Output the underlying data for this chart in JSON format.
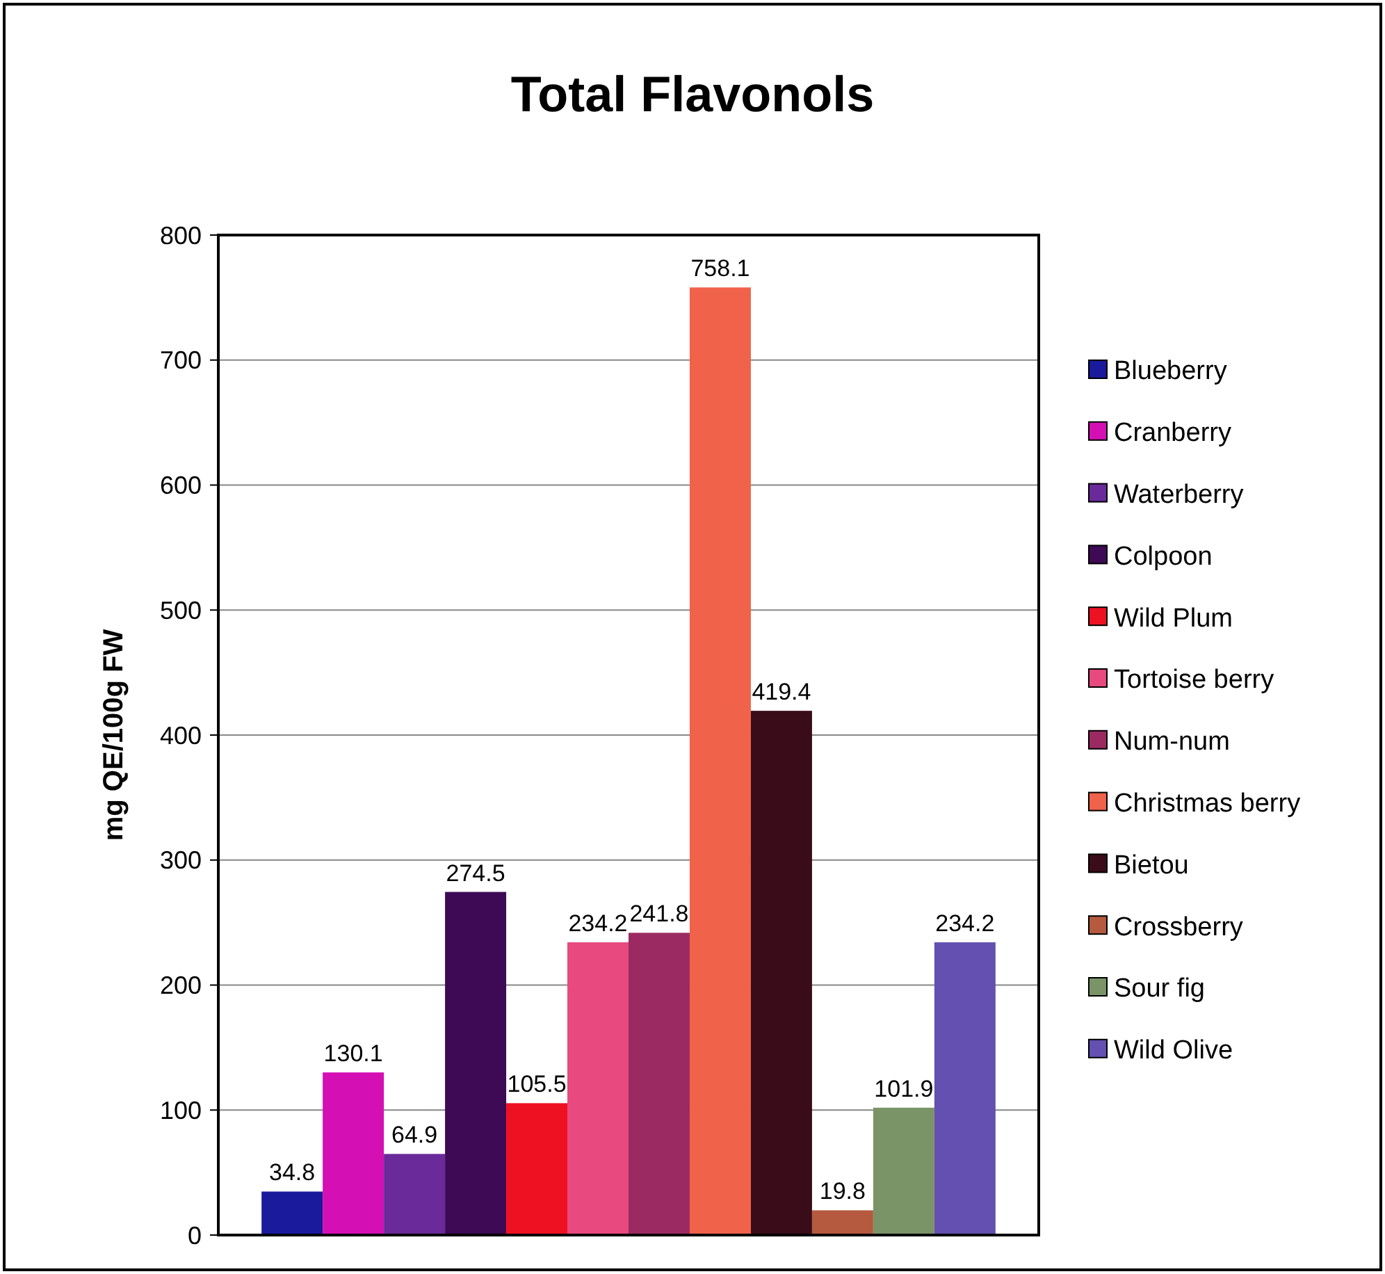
{
  "chart_data": {
    "type": "bar",
    "title": "Total Flavonols",
    "ylabel": "mg QE/100g FW",
    "categories": [
      null
    ],
    "series": [
      {
        "name": "Blueberry",
        "color": "#1a1a9c",
        "values": [
          34.8
        ]
      },
      {
        "name": "Cranberry",
        "color": "#d40fb4",
        "values": [
          130.1
        ]
      },
      {
        "name": "Waterberry",
        "color": "#6a2a9a",
        "values": [
          64.9
        ]
      },
      {
        "name": "Colpoon",
        "color": "#3e0a55",
        "values": [
          274.5
        ]
      },
      {
        "name": "Wild Plum",
        "color": "#ee1122",
        "values": [
          105.5
        ]
      },
      {
        "name": "Tortoise berry",
        "color": "#e8497e",
        "values": [
          234.2
        ]
      },
      {
        "name": "Num-num",
        "color": "#9b2a62",
        "values": [
          241.8
        ]
      },
      {
        "name": "Christmas berry",
        "color": "#f0624a",
        "values": [
          758.1
        ]
      },
      {
        "name": "Bietou",
        "color": "#3a0c1a",
        "values": [
          419.4
        ]
      },
      {
        "name": "Crossberry",
        "color": "#b55a3e",
        "values": [
          19.8
        ]
      },
      {
        "name": "Sour fig",
        "color": "#7a9468",
        "values": [
          101.9
        ]
      },
      {
        "name": "Wild Olive",
        "color": "#6450b0",
        "values": [
          234.2
        ]
      }
    ],
    "ylim": [
      0,
      800
    ],
    "yticks": [
      0,
      100,
      200,
      300,
      400,
      500,
      600,
      700,
      800
    ],
    "grid": "y",
    "legend": "right",
    "data_labels": true
  }
}
